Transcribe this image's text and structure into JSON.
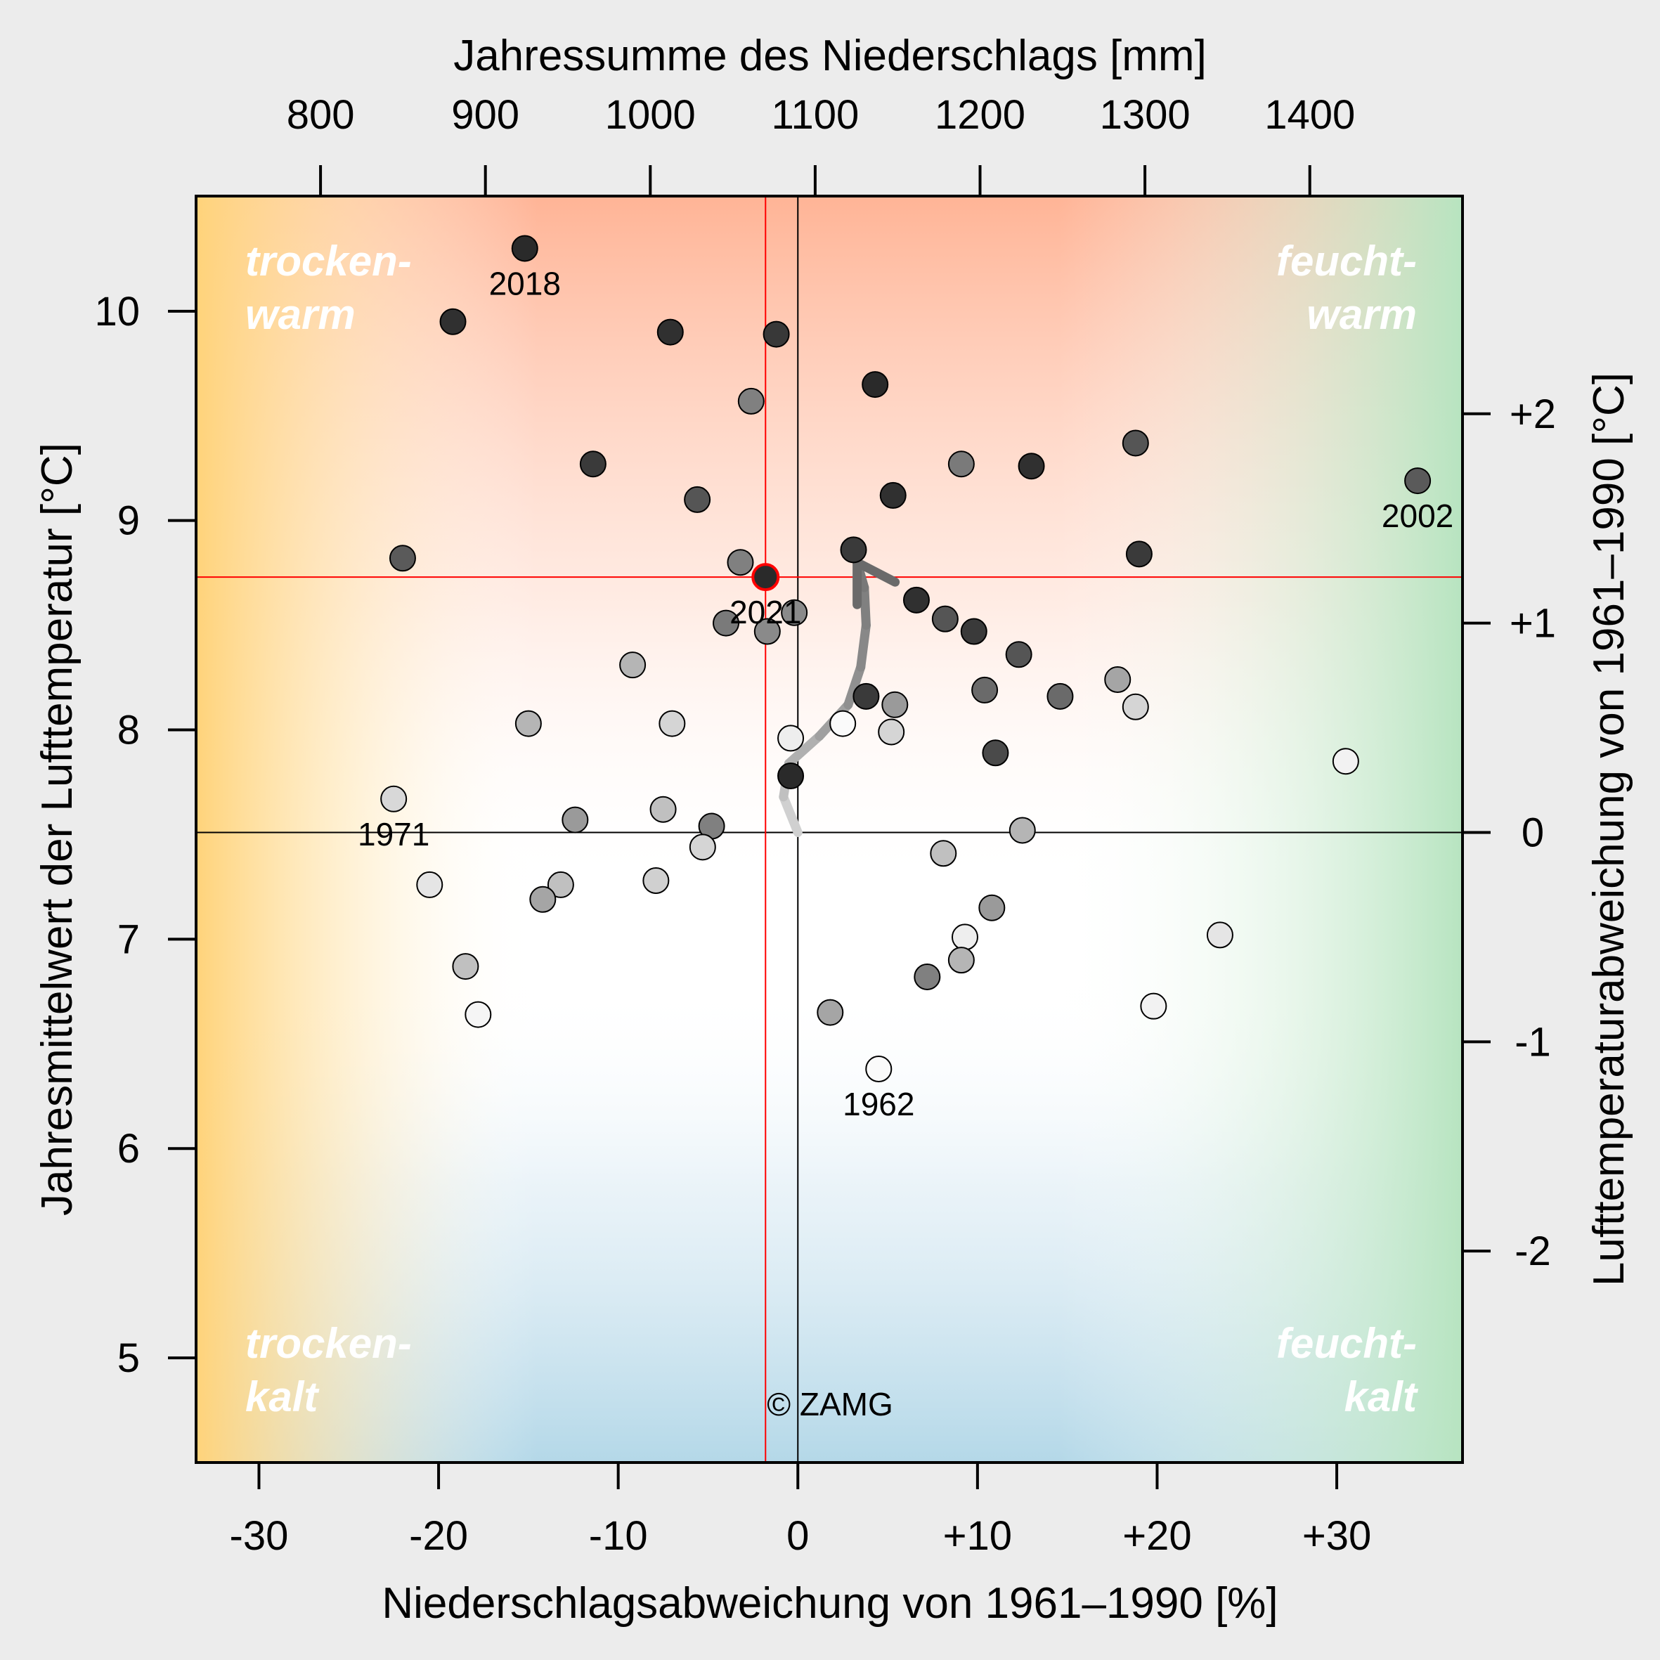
{
  "chart_data": {
    "type": "scatter",
    "title": "",
    "xlabel": "Niederschlagsabweichung von 1961–1990 [%]",
    "ylabel": "Jahresmittelwert der Lufttemperatur [°C]",
    "x2label": "Jahressumme des Niederschlags [mm]",
    "y2label": "Lufttemperaturabweichung von 1961–1990 [°C]",
    "xlim": [
      -33.5,
      37
    ],
    "ylim": [
      4.5,
      10.55
    ],
    "x_ticks": [
      -30,
      -20,
      -10,
      0,
      10,
      20,
      30
    ],
    "x_tick_labels": [
      "-30",
      "-20",
      "-10",
      "0",
      "+10",
      "+20",
      "+30"
    ],
    "y_ticks": [
      5,
      6,
      7,
      8,
      9,
      10
    ],
    "y_tick_labels": [
      "5",
      "6",
      "7",
      "8",
      "9",
      "10"
    ],
    "top_ticks_mm": [
      800,
      900,
      1000,
      1100,
      1200,
      1300,
      1400
    ],
    "top_tick_labels": [
      "800",
      "900",
      "1000",
      "1100",
      "1200",
      "1300",
      "1400"
    ],
    "precip_normal_mm": 1089.5,
    "right_ticks": [
      -2,
      -1,
      0,
      1,
      2
    ],
    "right_tick_labels": [
      "-2",
      "-1",
      "0",
      "+1",
      "+2"
    ],
    "temp_normal": 7.51,
    "reference_2021": {
      "x": -1.8,
      "y": 8.73,
      "label": "2021",
      "color": "#ff0000"
    },
    "quadrant_labels": {
      "top_left": [
        "trocken-",
        "warm"
      ],
      "top_right": [
        "feucht-",
        "warm"
      ],
      "bottom_left": [
        "trocken-",
        "kalt"
      ],
      "bottom_right": [
        "feucht-",
        "kalt"
      ]
    },
    "copyright": "© ZAMG",
    "year_labels": [
      {
        "label": "2018",
        "x": -15.2,
        "y": 10.3
      },
      {
        "label": "2002",
        "x": 34.5,
        "y": 9.19
      },
      {
        "label": "1971",
        "x": -22.5,
        "y": 7.67
      },
      {
        "label": "1962",
        "x": 4.5,
        "y": 6.38
      },
      {
        "label": "2021",
        "x": -1.8,
        "y": 8.73
      }
    ],
    "points": [
      {
        "x": -15.2,
        "y": 10.3,
        "shade": "#2a2a2a"
      },
      {
        "x": -19.2,
        "y": 9.95,
        "shade": "#303030"
      },
      {
        "x": -7.1,
        "y": 9.9,
        "shade": "#303030"
      },
      {
        "x": -1.2,
        "y": 9.89,
        "shade": "#383838"
      },
      {
        "x": 4.3,
        "y": 9.65,
        "shade": "#2a2a2a"
      },
      {
        "x": -2.6,
        "y": 9.57,
        "shade": "#808080"
      },
      {
        "x": 18.8,
        "y": 9.37,
        "shade": "#555555"
      },
      {
        "x": -11.4,
        "y": 9.27,
        "shade": "#3a3a3a"
      },
      {
        "x": 9.1,
        "y": 9.27,
        "shade": "#7a7a7a"
      },
      {
        "x": 13.0,
        "y": 9.26,
        "shade": "#303030"
      },
      {
        "x": 34.5,
        "y": 9.19,
        "shade": "#5a5a5a"
      },
      {
        "x": 5.3,
        "y": 9.12,
        "shade": "#303030"
      },
      {
        "x": -5.6,
        "y": 9.1,
        "shade": "#555555"
      },
      {
        "x": 3.1,
        "y": 8.86,
        "shade": "#3a3a3a"
      },
      {
        "x": 19.0,
        "y": 8.84,
        "shade": "#3a3a3a"
      },
      {
        "x": -22.0,
        "y": 8.82,
        "shade": "#5a5a5a"
      },
      {
        "x": -3.2,
        "y": 8.8,
        "shade": "#808080"
      },
      {
        "x": -1.8,
        "y": 8.73,
        "shade": "#2a2a2a",
        "highlight": true
      },
      {
        "x": 6.6,
        "y": 8.62,
        "shade": "#303030"
      },
      {
        "x": -0.2,
        "y": 8.56,
        "shade": "#8a8a8a"
      },
      {
        "x": 8.2,
        "y": 8.53,
        "shade": "#555555"
      },
      {
        "x": -4.0,
        "y": 8.51,
        "shade": "#7a7a7a"
      },
      {
        "x": 9.8,
        "y": 8.47,
        "shade": "#3a3a3a"
      },
      {
        "x": -1.7,
        "y": 8.47,
        "shade": "#8a8a8a"
      },
      {
        "x": 12.3,
        "y": 8.36,
        "shade": "#555555"
      },
      {
        "x": -9.2,
        "y": 8.31,
        "shade": "#b5b5b5"
      },
      {
        "x": 17.8,
        "y": 8.24,
        "shade": "#a5a5a5"
      },
      {
        "x": 10.4,
        "y": 8.19,
        "shade": "#6a6a6a"
      },
      {
        "x": 14.6,
        "y": 8.16,
        "shade": "#6a6a6a"
      },
      {
        "x": 3.8,
        "y": 8.16,
        "shade": "#3a3a3a"
      },
      {
        "x": 5.4,
        "y": 8.12,
        "shade": "#9a9a9a"
      },
      {
        "x": 18.8,
        "y": 8.11,
        "shade": "#d5d5d5"
      },
      {
        "x": -15.0,
        "y": 8.03,
        "shade": "#b5b5b5"
      },
      {
        "x": -7.0,
        "y": 8.03,
        "shade": "#d5d5d5"
      },
      {
        "x": 2.5,
        "y": 8.03,
        "shade": "#fafafa"
      },
      {
        "x": 5.2,
        "y": 7.99,
        "shade": "#d5d5d5"
      },
      {
        "x": -0.4,
        "y": 7.96,
        "shade": "#eeeeee"
      },
      {
        "x": 11.0,
        "y": 7.89,
        "shade": "#4a4a4a"
      },
      {
        "x": 30.5,
        "y": 7.85,
        "shade": "#f2f2f2"
      },
      {
        "x": -0.4,
        "y": 7.78,
        "shade": "#2a2a2a"
      },
      {
        "x": -22.5,
        "y": 7.67,
        "shade": "#d8d8d8"
      },
      {
        "x": -7.5,
        "y": 7.62,
        "shade": "#c0c0c0"
      },
      {
        "x": -12.4,
        "y": 7.57,
        "shade": "#9a9a9a"
      },
      {
        "x": -4.8,
        "y": 7.54,
        "shade": "#808080"
      },
      {
        "x": 12.5,
        "y": 7.52,
        "shade": "#b5b5b5"
      },
      {
        "x": -5.3,
        "y": 7.44,
        "shade": "#d5d5d5"
      },
      {
        "x": 8.1,
        "y": 7.41,
        "shade": "#c0c0c0"
      },
      {
        "x": -20.5,
        "y": 7.26,
        "shade": "#e5e5e5"
      },
      {
        "x": -13.2,
        "y": 7.26,
        "shade": "#c0c0c0"
      },
      {
        "x": -7.9,
        "y": 7.28,
        "shade": "#d0d0d0"
      },
      {
        "x": -14.2,
        "y": 7.19,
        "shade": "#a5a5a5"
      },
      {
        "x": 10.8,
        "y": 7.15,
        "shade": "#9a9a9a"
      },
      {
        "x": 23.5,
        "y": 7.02,
        "shade": "#e5e5e5"
      },
      {
        "x": 9.3,
        "y": 7.01,
        "shade": "#eeeeee"
      },
      {
        "x": 9.1,
        "y": 6.9,
        "shade": "#b5b5b5"
      },
      {
        "x": -18.5,
        "y": 6.87,
        "shade": "#c0c0c0"
      },
      {
        "x": 7.2,
        "y": 6.82,
        "shade": "#808080"
      },
      {
        "x": 19.8,
        "y": 6.68,
        "shade": "#f2f2f2"
      },
      {
        "x": 1.8,
        "y": 6.65,
        "shade": "#a5a5a5"
      },
      {
        "x": -17.8,
        "y": 6.64,
        "shade": "#f5f5f5"
      },
      {
        "x": 4.5,
        "y": 6.38,
        "shade": "#fafafa"
      }
    ],
    "trend_path": [
      {
        "x": 0.0,
        "y": 7.51,
        "shade": "#d0d0d0"
      },
      {
        "x": -0.8,
        "y": 7.68,
        "shade": "#c0c0c0"
      },
      {
        "x": -0.5,
        "y": 7.84,
        "shade": "#b0b0b0"
      },
      {
        "x": 1.2,
        "y": 7.97,
        "shade": "#a0a0a0"
      },
      {
        "x": 2.8,
        "y": 8.12,
        "shade": "#909090"
      },
      {
        "x": 3.5,
        "y": 8.3,
        "shade": "#888888"
      },
      {
        "x": 3.8,
        "y": 8.5,
        "shade": "#808080"
      },
      {
        "x": 3.7,
        "y": 8.68,
        "shade": "#787878"
      },
      {
        "x": 3.3,
        "y": 8.8,
        "shade": "#707070"
      }
    ]
  }
}
